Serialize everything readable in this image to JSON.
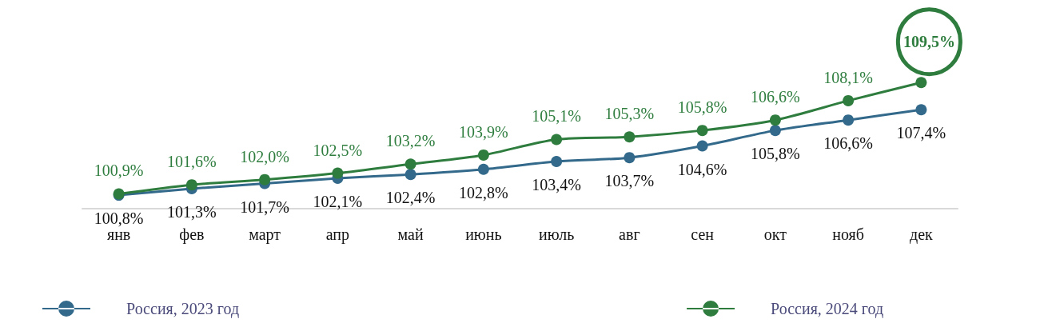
{
  "chart_data": {
    "type": "line",
    "categories": [
      "янв",
      "фев",
      "март",
      "апр",
      "май",
      "июнь",
      "июль",
      "авг",
      "сен",
      "окт",
      "нояб",
      "дек"
    ],
    "series": [
      {
        "name": "Россия, 2023 год",
        "color": "#33698a",
        "values": [
          100.8,
          101.3,
          101.7,
          102.1,
          102.4,
          102.8,
          103.4,
          103.7,
          104.6,
          105.8,
          106.6,
          107.4
        ],
        "value_labels": [
          "100,8%",
          "101,3%",
          "101,7%",
          "102,1%",
          "102,4%",
          "102,8%",
          "103,4%",
          "103,7%",
          "104,6%",
          "105,8%",
          "106,6%",
          "107,4%"
        ]
      },
      {
        "name": "Россия, 2024 год",
        "color": "#2e7d3e",
        "values": [
          100.9,
          101.6,
          102.0,
          102.5,
          103.2,
          103.9,
          105.1,
          105.3,
          105.8,
          106.6,
          108.1,
          109.5
        ],
        "value_labels": [
          "100,9%",
          "101,6%",
          "102,0%",
          "102,5%",
          "103,2%",
          "103,9%",
          "105,1%",
          "105,3%",
          "105,8%",
          "106,6%",
          "108,1%",
          "109,5%"
        ]
      }
    ],
    "tick_labels": "x",
    "grid": false,
    "legend": "bottom",
    "marker": "circle",
    "line_style": "solid"
  }
}
